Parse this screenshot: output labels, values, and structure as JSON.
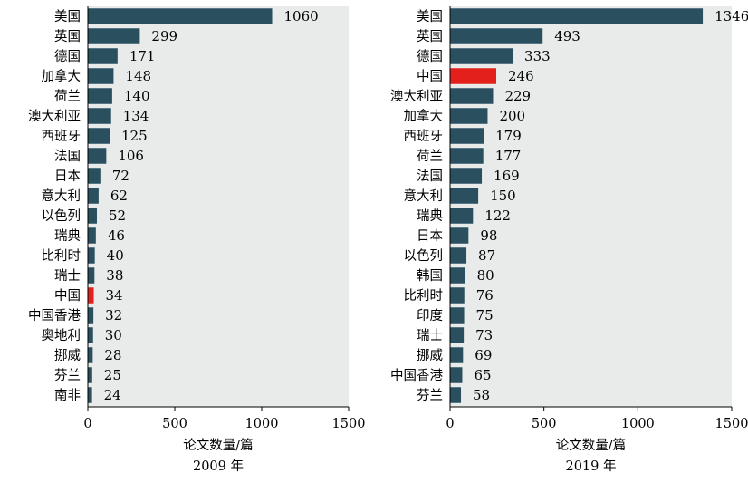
{
  "colors": {
    "bar": "#2a5060",
    "highlight": "#e3201b",
    "background": "#e8ebe9"
  },
  "chart_data": [
    {
      "type": "bar",
      "orientation": "horizontal",
      "categories": [
        "美国",
        "英国",
        "德国",
        "加拿大",
        "荷兰",
        "澳大利亚",
        "西班牙",
        "法国",
        "日本",
        "意大利",
        "以色列",
        "瑞典",
        "比利时",
        "瑞士",
        "中国",
        "中国香港",
        "奥地利",
        "挪威",
        "芬兰",
        "南非"
      ],
      "values": [
        1060,
        299,
        171,
        148,
        140,
        134,
        125,
        106,
        72,
        62,
        52,
        46,
        40,
        38,
        34,
        32,
        30,
        28,
        25,
        24
      ],
      "highlight": "中国",
      "xlabel": "论文数量/篇",
      "caption": "2009 年",
      "xlim": [
        0,
        1500
      ],
      "xticks": [
        0,
        500,
        1000,
        1500
      ]
    },
    {
      "type": "bar",
      "orientation": "horizontal",
      "categories": [
        "美国",
        "英国",
        "德国",
        "中国",
        "澳大利亚",
        "加拿大",
        "西班牙",
        "荷兰",
        "法国",
        "意大利",
        "瑞典",
        "日本",
        "以色列",
        "韩国",
        "比利时",
        "印度",
        "瑞士",
        "挪威",
        "中国香港",
        "芬兰"
      ],
      "values": [
        1346,
        493,
        333,
        246,
        229,
        200,
        179,
        177,
        169,
        150,
        122,
        98,
        87,
        80,
        76,
        75,
        73,
        69,
        65,
        58
      ],
      "highlight": "中国",
      "xlabel": "论文数量/篇",
      "caption": "2019 年",
      "xlim": [
        0,
        1500
      ],
      "xticks": [
        0,
        500,
        1000,
        1500
      ]
    }
  ]
}
